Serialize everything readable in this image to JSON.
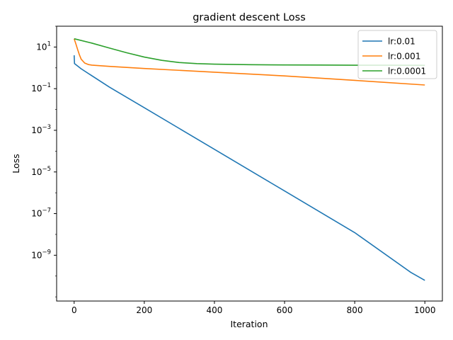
{
  "chart_data": {
    "type": "line",
    "title": "gradient descent Loss",
    "xlabel": "Iteration",
    "ylabel": "Loss",
    "xlim": [
      -50,
      1050
    ],
    "ylim_log10": [
      -11.2,
      2.0
    ],
    "y_scale": "log",
    "x_ticks": [
      0,
      200,
      400,
      600,
      800,
      1000
    ],
    "x_tick_labels": [
      "0",
      "200",
      "400",
      "600",
      "800",
      "1000"
    ],
    "y_ticks_log10": [
      -9,
      -7,
      -5,
      -3,
      -1,
      1
    ],
    "y_tick_labels": [
      {
        "base": "10",
        "exp": "−9"
      },
      {
        "base": "10",
        "exp": "−7"
      },
      {
        "base": "10",
        "exp": "−5"
      },
      {
        "base": "10",
        "exp": "−3"
      },
      {
        "base": "10",
        "exp": "−1"
      },
      {
        "base": "10",
        "exp": "1"
      }
    ],
    "grid": false,
    "legend_position": "top-right",
    "series": [
      {
        "name": "lr:0.01",
        "color": "#1f77b4",
        "points": [
          [
            0,
            4.0
          ],
          [
            1,
            1.6
          ],
          [
            20,
            0.9
          ],
          [
            100,
            0.12
          ],
          [
            200,
            0.0122
          ],
          [
            400,
            0.000122
          ],
          [
            600,
            1.22e-06
          ],
          [
            800,
            1.22e-08
          ],
          [
            960,
            1.5e-10
          ],
          [
            1000,
            6.2e-11
          ]
        ]
      },
      {
        "name": "lr:0.001",
        "color": "#ff7f0e",
        "points": [
          [
            0,
            25
          ],
          [
            5,
            14
          ],
          [
            10,
            7.5
          ],
          [
            15,
            4.2
          ],
          [
            20,
            2.6
          ],
          [
            30,
            1.7
          ],
          [
            40,
            1.45
          ],
          [
            50,
            1.35
          ],
          [
            100,
            1.18
          ],
          [
            200,
            0.93
          ],
          [
            400,
            0.62
          ],
          [
            600,
            0.41
          ],
          [
            800,
            0.25
          ],
          [
            1000,
            0.15
          ]
        ]
      },
      {
        "name": "lr:0.0001",
        "color": "#2ca02c",
        "points": [
          [
            0,
            25
          ],
          [
            50,
            15.5
          ],
          [
            100,
            9
          ],
          [
            150,
            5.3
          ],
          [
            200,
            3.3
          ],
          [
            250,
            2.3
          ],
          [
            300,
            1.8
          ],
          [
            350,
            1.6
          ],
          [
            400,
            1.5
          ],
          [
            500,
            1.42
          ],
          [
            600,
            1.38
          ],
          [
            700,
            1.36
          ],
          [
            800,
            1.34
          ],
          [
            900,
            1.34
          ],
          [
            1000,
            1.33
          ]
        ]
      }
    ]
  }
}
